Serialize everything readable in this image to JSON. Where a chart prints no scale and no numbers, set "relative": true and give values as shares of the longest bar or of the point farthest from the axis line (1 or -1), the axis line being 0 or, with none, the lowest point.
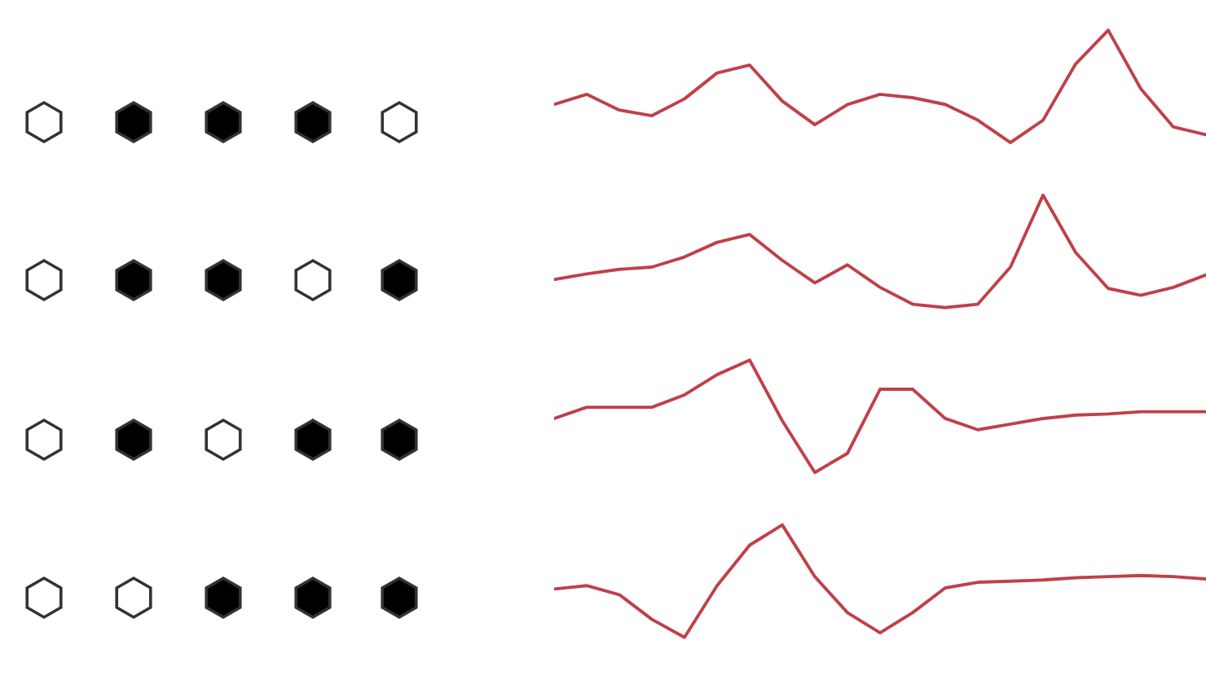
{
  "chart_data": [
    {
      "type": "line",
      "relative": true,
      "categories": [
        null,
        null,
        null,
        null,
        null,
        null,
        null,
        null,
        null,
        null,
        null,
        null,
        null,
        null,
        null,
        null,
        null,
        null,
        null,
        null,
        null
      ],
      "series": [
        {
          "color": "#c0404a",
          "values": [
            0.34,
            0.43,
            0.29,
            0.24,
            0.39,
            0.62,
            0.69,
            0.37,
            0.16,
            0.34,
            0.43,
            0.4,
            0.34,
            0.2,
            0,
            0.2,
            0.7,
            1,
            0.48,
            0.14,
            0.07
          ]
        }
      ]
    },
    {
      "type": "line",
      "relative": true,
      "categories": [
        null,
        null,
        null,
        null,
        null,
        null,
        null,
        null,
        null,
        null,
        null,
        null,
        null,
        null,
        null,
        null,
        null,
        null,
        null,
        null,
        null
      ],
      "series": [
        {
          "color": "#c0404a",
          "values": [
            0.25,
            0.3,
            0.34,
            0.36,
            0.45,
            0.58,
            0.65,
            0.42,
            0.22,
            0.38,
            0.18,
            0.03,
            0,
            0.03,
            0.36,
            1,
            0.49,
            0.17,
            0.11,
            0.18,
            0.29
          ]
        }
      ]
    },
    {
      "type": "line",
      "relative": true,
      "categories": [
        null,
        null,
        null,
        null,
        null,
        null,
        null,
        null,
        null,
        null,
        null,
        null,
        null,
        null,
        null,
        null,
        null,
        null,
        null,
        null,
        null
      ],
      "series": [
        {
          "color": "#c0404a",
          "values": [
            0.48,
            0.58,
            0.58,
            0.58,
            0.69,
            0.87,
            1,
            0.46,
            0,
            0.17,
            0.74,
            0.74,
            0.48,
            0.38,
            0.43,
            0.48,
            0.51,
            0.52,
            0.54,
            0.54,
            0.54
          ]
        }
      ]
    },
    {
      "type": "line",
      "relative": true,
      "categories": [
        null,
        null,
        null,
        null,
        null,
        null,
        null,
        null,
        null,
        null,
        null,
        null,
        null,
        null,
        null,
        null,
        null,
        null,
        null,
        null,
        null
      ],
      "series": [
        {
          "color": "#c0404a",
          "values": [
            0.43,
            0.46,
            0.38,
            0.16,
            0,
            0.46,
            0.82,
            1,
            0.54,
            0.22,
            0.04,
            0.22,
            0.44,
            0.49,
            0.5,
            0.51,
            0.53,
            0.54,
            0.55,
            0.54,
            0.52
          ]
        }
      ]
    }
  ]
}
